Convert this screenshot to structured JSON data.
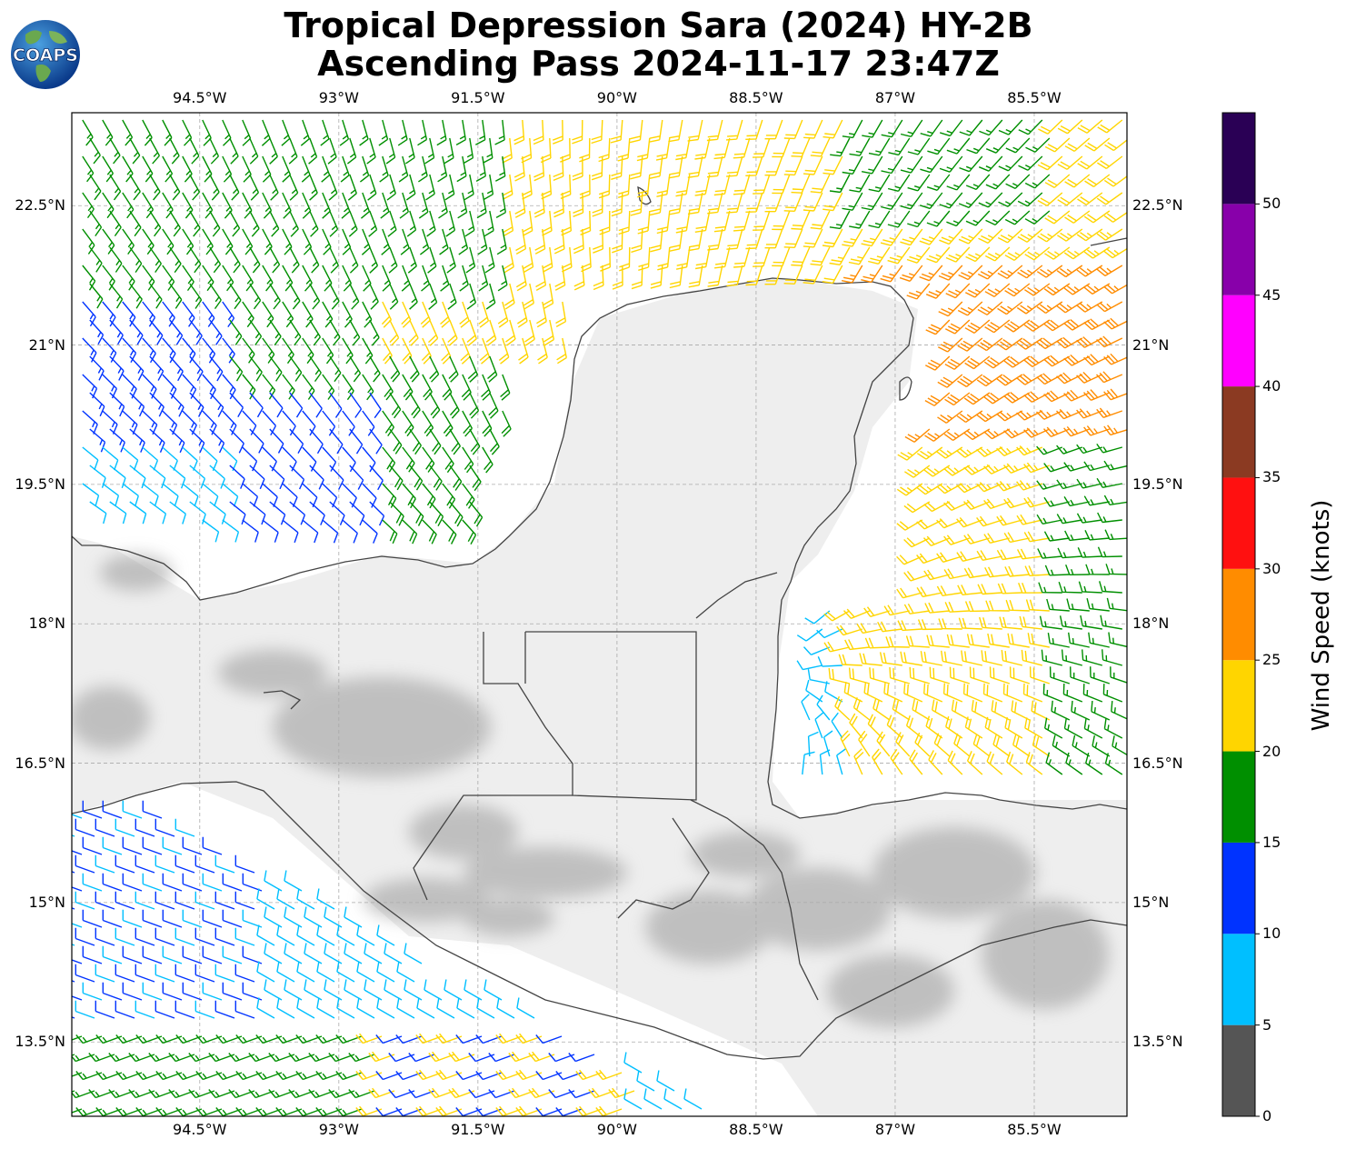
{
  "title_line1": "Tropical Depression Sara (2024) HY-2B",
  "title_line2": "Ascending Pass 2024-11-17 23:47Z",
  "logo": {
    "text": "COAPS",
    "icon": "globe-logo-icon"
  },
  "map": {
    "lon_labels": [
      "94.5°W",
      "93°W",
      "91.5°W",
      "90°W",
      "88.5°W",
      "87°W",
      "85.5°W"
    ],
    "lat_labels": [
      "22.5°N",
      "21°N",
      "19.5°N",
      "18°N",
      "16.5°N",
      "15°N",
      "13.5°N"
    ],
    "extent": {
      "lon_min": -95.88,
      "lon_max": -84.5,
      "lat_min": 12.7,
      "lat_max": 23.5
    },
    "gridlines": true
  },
  "colorbar": {
    "title": "Wind Speed (knots)",
    "tick_labels": [
      "0",
      "5",
      "10",
      "15",
      "20",
      "25",
      "30",
      "35",
      "40",
      "45",
      "50"
    ],
    "bins": [
      {
        "range": [
          0,
          5
        ],
        "color": "#555555"
      },
      {
        "range": [
          5,
          10
        ],
        "color": "#00bfff"
      },
      {
        "range": [
          10,
          15
        ],
        "color": "#0033ff"
      },
      {
        "range": [
          15,
          20
        ],
        "color": "#008f00"
      },
      {
        "range": [
          20,
          25
        ],
        "color": "#ffd500"
      },
      {
        "range": [
          25,
          30
        ],
        "color": "#ff8c00"
      },
      {
        "range": [
          30,
          35
        ],
        "color": "#ff1010"
      },
      {
        "range": [
          35,
          40
        ],
        "color": "#8b3a22"
      },
      {
        "range": [
          40,
          45
        ],
        "color": "#ff00ff"
      },
      {
        "range": [
          45,
          50
        ],
        "color": "#8800aa"
      },
      {
        "range": [
          50,
          55
        ],
        "color": "#2a0055"
      }
    ]
  }
}
